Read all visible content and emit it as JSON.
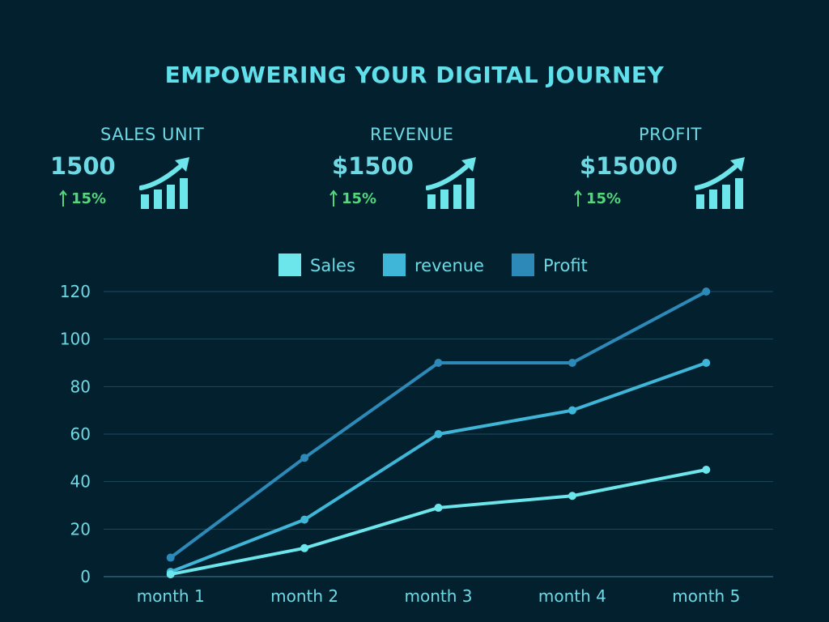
{
  "title": "EMPOWERING YOUR DIGITAL JOURNEY",
  "colors": {
    "background": "#03202f",
    "sales": "#6ce6ea",
    "revenue": "#3fb6d8",
    "profit": "#2d8ab8",
    "positive": "#55d67c",
    "grid": "#1d4a5c",
    "text": "#6fd9e3"
  },
  "kpis": [
    {
      "label": "SALES UNIT",
      "value": "1500",
      "change": "15%",
      "icon": "growth-chart-icon"
    },
    {
      "label": "REVENUE",
      "value": "$1500",
      "change": "15%",
      "icon": "growth-chart-icon"
    },
    {
      "label": "PROFIT",
      "value": "$15000",
      "change": "15%",
      "icon": "growth-chart-icon"
    }
  ],
  "chart_data": {
    "type": "line",
    "title": "",
    "xlabel": "",
    "ylabel": "",
    "categories": [
      "month 1",
      "month 2",
      "month 3",
      "month 4",
      "month 5"
    ],
    "ylim": [
      0,
      120
    ],
    "yticks": [
      0,
      20,
      40,
      60,
      80,
      100,
      120
    ],
    "grid": true,
    "legend_position": "top-center",
    "series": [
      {
        "name": "Sales",
        "values": [
          1,
          12,
          29,
          34,
          45
        ]
      },
      {
        "name": "revenue",
        "values": [
          2,
          24,
          60,
          70,
          90
        ]
      },
      {
        "name": "Profit",
        "values": [
          8,
          50,
          90,
          90,
          120
        ]
      }
    ]
  }
}
